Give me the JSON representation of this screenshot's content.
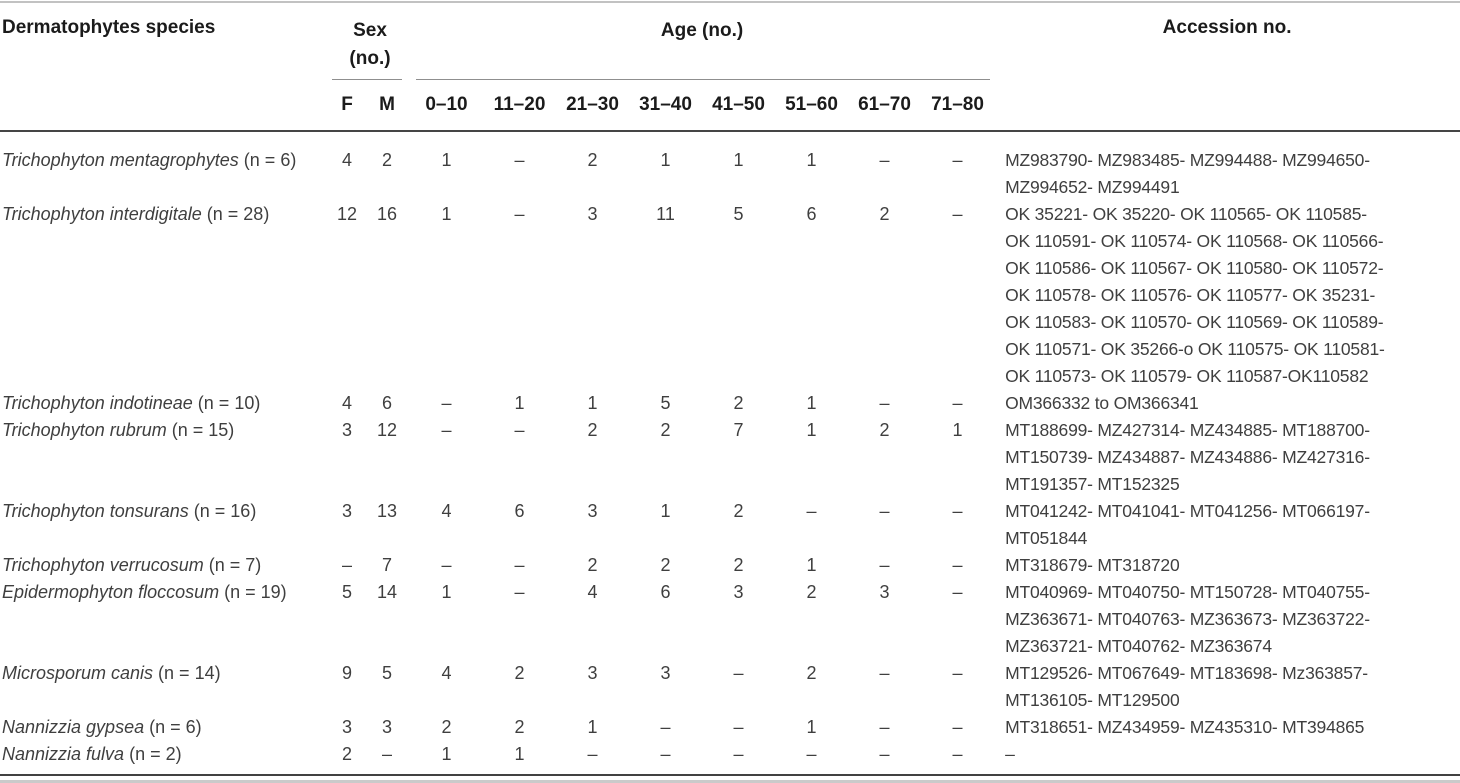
{
  "table": {
    "species_header": "Dermatophytes species",
    "sex_header_line1": "Sex",
    "sex_header_line2": "(no.)",
    "age_header": "Age (no.)",
    "accession_header": "Accession no.",
    "sex_cols": [
      "F",
      "M"
    ],
    "age_cols": [
      "0–10",
      "11–20",
      "21–30",
      "31–40",
      "41–50",
      "51–60",
      "61–70",
      "71–80"
    ],
    "rows": [
      {
        "species": "Trichophyton mentagrophytes",
        "n": "(n = 6)",
        "sex": [
          "4",
          "2"
        ],
        "ages": [
          "1",
          "–",
          "2",
          "1",
          "1",
          "1",
          "–",
          "–"
        ],
        "accession_lines": [
          "MZ983790- MZ983485- MZ994488- MZ994650-",
          "MZ994652- MZ994491"
        ]
      },
      {
        "species": "Trichophyton interdigitale",
        "n": "(n = 28)",
        "sex": [
          "12",
          "16"
        ],
        "ages": [
          "1",
          "–",
          "3",
          "11",
          "5",
          "6",
          "2",
          "–"
        ],
        "accession_lines": [
          "OK 35221- OK 35220- OK 110565- OK 110585-",
          "OK 110591- OK 110574- OK 110568- OK 110566-",
          "OK 110586- OK 110567- OK 110580- OK 110572-",
          "OK 110578- OK 110576- OK 110577- OK 35231-",
          "OK 110583- OK 110570- OK 110569- OK 110589-",
          "OK 110571- OK 35266-o OK 110575- OK 110581-",
          "OK 110573- OK 110579- OK 110587-OK110582"
        ]
      },
      {
        "species": "Trichophyton indotineae",
        "n": "(n = 10)",
        "sex": [
          "4",
          "6"
        ],
        "ages": [
          "–",
          "1",
          "1",
          "5",
          "2",
          "1",
          "–",
          "–"
        ],
        "accession_lines": [
          "OM366332 to OM366341"
        ]
      },
      {
        "species": "Trichophyton rubrum",
        "n": "(n = 15)",
        "sex": [
          "3",
          "12"
        ],
        "ages": [
          "–",
          "–",
          "2",
          "2",
          "7",
          "1",
          "2",
          "1"
        ],
        "accession_lines": [
          "MT188699- MZ427314- MZ434885- MT188700-",
          "MT150739- MZ434887- MZ434886- MZ427316-",
          "MT191357- MT152325"
        ]
      },
      {
        "species": "Trichophyton tonsurans",
        "n": "(n = 16)",
        "sex": [
          "3",
          "13"
        ],
        "ages": [
          "4",
          "6",
          "3",
          "1",
          "2",
          "–",
          "–",
          "–"
        ],
        "accession_lines": [
          "MT041242- MT041041- MT041256- MT066197-",
          "MT051844"
        ]
      },
      {
        "species": "Trichophyton verrucosum",
        "n": "(n = 7)",
        "sex": [
          "–",
          "7"
        ],
        "ages": [
          "–",
          "–",
          "2",
          "2",
          "2",
          "1",
          "–",
          "–"
        ],
        "accession_lines": [
          "MT318679- MT318720"
        ]
      },
      {
        "species": "Epidermophyton floccosum",
        "n": "(n = 19)",
        "sex": [
          "5",
          "14"
        ],
        "ages": [
          "1",
          "–",
          "4",
          "6",
          "3",
          "2",
          "3",
          "–"
        ],
        "accession_lines": [
          "MT040969- MT040750- MT150728- MT040755-",
          "MZ363671- MT040763- MZ363673- MZ363722-",
          "MZ363721- MT040762- MZ363674"
        ]
      },
      {
        "species": "Microsporum canis",
        "n": "(n = 14)",
        "sex": [
          "9",
          "5"
        ],
        "ages": [
          "4",
          "2",
          "3",
          "3",
          "–",
          "2",
          "–",
          "–"
        ],
        "accession_lines": [
          "MT129526- MT067649- MT183698- Mz363857-",
          "MT136105- MT129500"
        ]
      },
      {
        "species": "Nannizzia gypsea",
        "n": "(n = 6)",
        "sex": [
          "3",
          "3"
        ],
        "ages": [
          "2",
          "2",
          "1",
          "–",
          "–",
          "1",
          "–",
          "–"
        ],
        "accession_lines": [
          "MT318651- MZ434959- MZ435310- MT394865"
        ]
      },
      {
        "species": "Nannizzia fulva",
        "n": "(n = 2)",
        "sex": [
          "2",
          "–"
        ],
        "ages": [
          "1",
          "1",
          "–",
          "–",
          "–",
          "–",
          "–",
          "–"
        ],
        "accession_lines": [
          "–"
        ]
      }
    ]
  }
}
